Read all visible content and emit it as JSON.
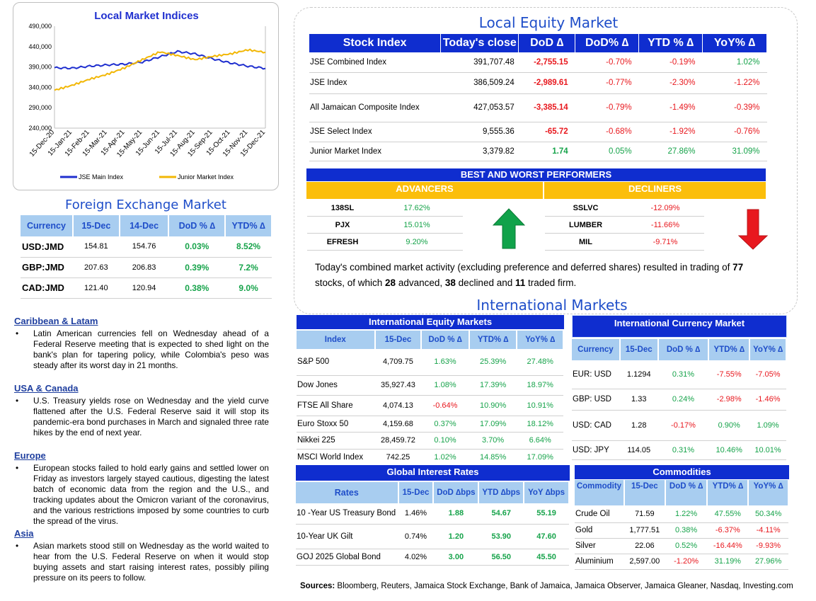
{
  "chart_data": {
    "type": "line",
    "title": "Local Market Indices",
    "x_ticks": [
      "15-Dec-20",
      "15-Jan-21",
      "15-Feb-21",
      "15-Mar-21",
      "15-Apr-21",
      "15-May-21",
      "15-Jun-21",
      "15-Jul-21",
      "15-Aug-21",
      "15-Sep-21",
      "15-Oct-21",
      "15-Nov-21",
      "15-Dec-21"
    ],
    "y_ticks": [
      "490,000",
      "440,000",
      "390,000",
      "340,000",
      "290,000",
      "240,000"
    ],
    "ylim": [
      240000,
      490000
    ],
    "series": [
      {
        "name": "JSE Main Index",
        "color": "#1f2fcf",
        "values": [
          388000,
          387000,
          392000,
          395000,
          397000,
          402000,
          415000,
          428000,
          422000,
          410000,
          400000,
          392000,
          386500
        ]
      },
      {
        "name": "Junior Market Index",
        "color": "#f2b705",
        "values": [
          333000,
          345000,
          360000,
          372000,
          388000,
          408000,
          427000,
          418000,
          408000,
          416000,
          422000,
          432000,
          426000
        ]
      }
    ]
  },
  "fx": {
    "title": "Foreign Exchange Market",
    "headers": [
      "Currency",
      "15-Dec",
      "14-Dec",
      "DoD % ∆",
      "YTD% ∆"
    ],
    "rows": [
      {
        "c": "USD:JMD",
        "a": "154.81",
        "b": "154.76",
        "d": "0.03%",
        "y": "8.52%"
      },
      {
        "c": "GBP:JMD",
        "a": "207.63",
        "b": "206.83",
        "d": "0.39%",
        "y": "7.2%"
      },
      {
        "c": "CAD:JMD",
        "a": "121.40",
        "b": "120.94",
        "d": "0.38%",
        "y": "9.0%"
      }
    ]
  },
  "news": [
    {
      "h": "Caribbean & Latam",
      "p": "Latin American currencies fell on Wednesday ahead of a Federal Reserve meeting that is expected to shed light on the bank's plan for tapering policy, while Colombia's peso was steady after its worst day in 21 months."
    },
    {
      "h": "USA & Canada",
      "p": "U.S. Treasury yields rose on Wednesday and the yield curve flattened after the U.S. Federal Reserve said it will stop its pandemic-era bond purchases in March and signaled three rate hikes by the end of next year."
    },
    {
      "h": "Europe",
      "p": "European stocks failed to hold early gains and settled lower on Friday as investors largely stayed cautious, digesting the latest batch of economic data from the region and the U.S., and tracking updates about the Omicron variant of the coronavirus, and the various restrictions imposed by some countries to curb the spread of the virus."
    },
    {
      "h": "Asia",
      "p": "Asian markets stood still on Wednesday as the world waited to hear from the U.S. Federal Reserve on when it would stop buying assets and start raising interest rates, possibly piling pressure on its peers to follow."
    }
  ],
  "equity": {
    "title": "Local Equity Market",
    "headers": [
      "Stock Index",
      "Today's close",
      "DoD  ∆",
      "DoD% ∆",
      "YTD % ∆",
      "YoY% ∆"
    ],
    "rows": [
      {
        "n": "JSE Combined Index",
        "c": "391,707.48",
        "d": "-2,755.15",
        "dp": "-0.70%",
        "y": "-0.19%",
        "yy": "1.02%"
      },
      {
        "n": "JSE Index",
        "c": "386,509.24",
        "d": "-2,989.61",
        "dp": "-0.77%",
        "y": "-2.30%",
        "yy": "-1.22%"
      },
      {
        "n": "All Jamaican Composite Index",
        "c": "427,053.57",
        "d": "-3,385.14",
        "dp": "-0.79%",
        "y": "-1.49%",
        "yy": "-0.39%"
      },
      {
        "n": "JSE Select Index",
        "c": "9,555.36",
        "d": "-65.72",
        "dp": "-0.68%",
        "y": "-1.92%",
        "yy": "-0.76%"
      },
      {
        "n": "Junior Market Index",
        "c": "3,379.82",
        "d": "1.74",
        "dp": "0.05%",
        "y": "27.86%",
        "yy": "31.09%"
      }
    ]
  },
  "performers": {
    "title": "BEST AND WORST PERFORMERS",
    "adv_label": "ADVANCERS",
    "dec_label": "DECLINERS",
    "advancers": [
      {
        "s": "138SL",
        "v": "17.62%"
      },
      {
        "s": "PJX",
        "v": "15.01%"
      },
      {
        "s": "EFRESH",
        "v": "9.20%"
      }
    ],
    "decliners": [
      {
        "s": "SSLVC",
        "v": "-12.09%"
      },
      {
        "s": "LUMBER",
        "v": "-11.66%"
      },
      {
        "s": "MIL",
        "v": "-9.71%"
      }
    ]
  },
  "summary": {
    "t1": "Today's combined market activity (excluding preference and deferred shares) resulted in trading of ",
    "n1": "77",
    "t2": " stocks, of which ",
    "n2": "28",
    "t3": " advanced, ",
    "n3": "38",
    "t4": " declined and ",
    "n4": "11",
    "t5": " traded firm."
  },
  "intl": {
    "title": "International Markets",
    "equity": {
      "title": "International Equity Markets",
      "headers": [
        "Index",
        "15-Dec",
        "DoD % ∆",
        "YTD% ∆",
        "YoY% ∆"
      ],
      "rows": [
        {
          "n": "S&P 500",
          "v": "4,709.75",
          "d": "1.63%",
          "y": "25.39%",
          "yy": "27.48%"
        },
        {
          "n": "Dow Jones",
          "v": "35,927.43",
          "d": "1.08%",
          "y": "17.39%",
          "yy": "18.97%"
        },
        {
          "n": "FTSE All Share",
          "v": "4,074.13",
          "d": "-0.64%",
          "y": "10.90%",
          "yy": "10.91%"
        },
        {
          "n": "Euro Stoxx 50",
          "v": "4,159.68",
          "d": "0.37%",
          "y": "17.09%",
          "yy": "18.12%"
        },
        {
          "n": "Nikkei 225",
          "v": "28,459.72",
          "d": "0.10%",
          "y": "3.70%",
          "yy": "6.64%"
        },
        {
          "n": "MSCI World Index",
          "v": "742.25",
          "d": "1.02%",
          "y": "14.85%",
          "yy": "17.09%"
        }
      ]
    },
    "currency": {
      "title": "International Currency Market",
      "headers": [
        "Currency",
        "15-Dec",
        "DoD % ∆",
        "YTD% ∆",
        "YoY% ∆"
      ],
      "rows": [
        {
          "n": "EUR: USD",
          "v": "1.1294",
          "d": "0.31%",
          "y": "-7.55%",
          "yy": "-7.05%"
        },
        {
          "n": "GBP: USD",
          "v": "1.33",
          "d": "0.24%",
          "y": "-2.98%",
          "yy": "-1.46%"
        },
        {
          "n": "USD: CAD",
          "v": "1.28",
          "d": "-0.17%",
          "y": "0.90%",
          "yy": "1.09%"
        },
        {
          "n": "USD: JPY",
          "v": "114.05",
          "d": "0.31%",
          "y": "10.46%",
          "yy": "10.01%"
        }
      ]
    },
    "rates": {
      "title": "Global Interest Rates",
      "headers": [
        "Rates",
        "15-Dec",
        "DoD ∆bps",
        "YTD ∆bps",
        "YoY ∆bps"
      ],
      "rows": [
        {
          "n": "10 -Year US Treasury Bond",
          "v": "1.46%",
          "d": "1.88",
          "y": "54.67",
          "yy": "55.19"
        },
        {
          "n": "10-Year UK Gilt",
          "v": "0.74%",
          "d": "1.20",
          "y": "53.90",
          "yy": "47.60"
        },
        {
          "n": "GOJ 2025 Global Bond",
          "v": "4.02%",
          "d": "3.00",
          "y": "56.50",
          "yy": "45.50"
        }
      ]
    },
    "commodities": {
      "title": "Commodities",
      "headers": [
        "Commodity",
        "15-Dec",
        "DoD % ∆",
        "YTD% ∆",
        "YoY% ∆"
      ],
      "rows": [
        {
          "n": "Crude Oil",
          "v": "71.59",
          "d": "1.22%",
          "y": "47.55%",
          "yy": "50.34%"
        },
        {
          "n": "Gold",
          "v": "1,777.51",
          "d": "0.38%",
          "y": "-6.37%",
          "yy": "-4.11%"
        },
        {
          "n": "Silver",
          "v": "22.06",
          "d": "0.52%",
          "y": "-16.44%",
          "yy": "-9.93%"
        },
        {
          "n": "Aluminium",
          "v": "2,597.00",
          "d": "-1.20%",
          "y": "31.19%",
          "yy": "27.96%"
        }
      ]
    }
  },
  "sources": {
    "label": "Sources:",
    "text": " Bloomberg, Reuters, Jamaica Stock Exchange, Bank of Jamaica, Jamaica Observer, Jamaica Gleaner, Nasdaq, Investing.com"
  }
}
